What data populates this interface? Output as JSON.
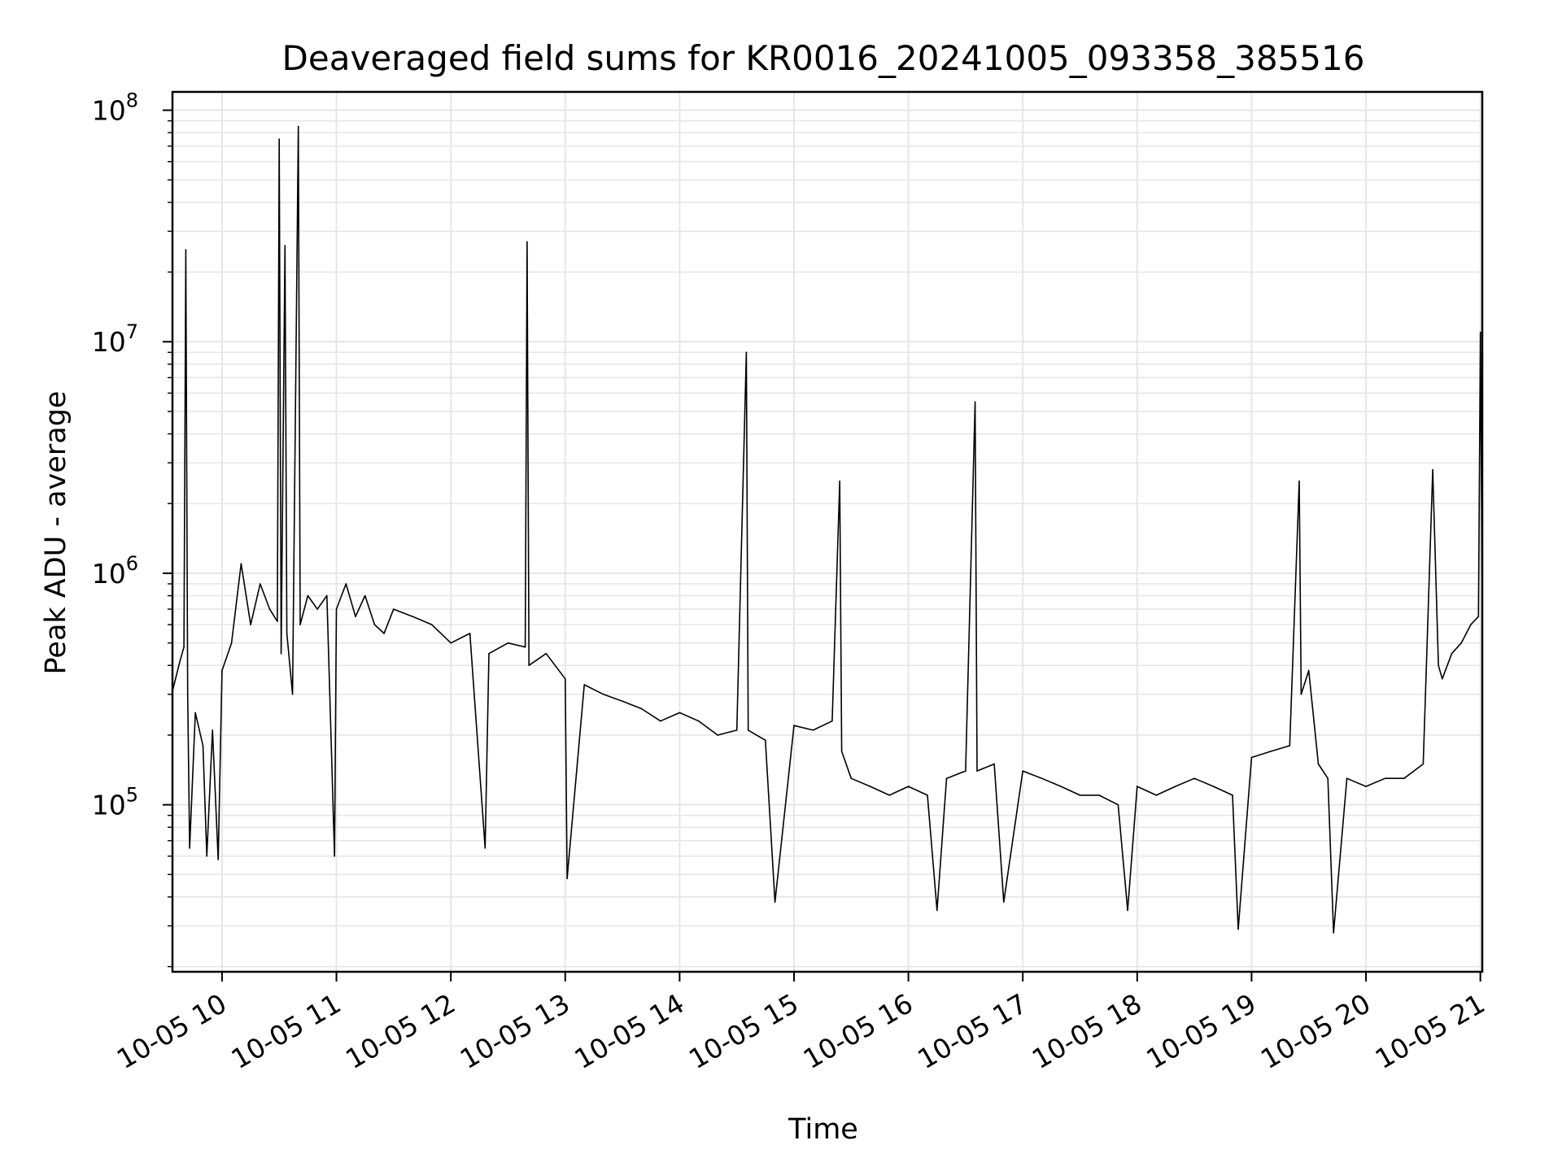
{
  "chart_data": {
    "type": "line",
    "title": "Deaveraged field sums for KR0016_20241005_093358_385516",
    "xlabel": "Time",
    "ylabel": "Peak ADU - average",
    "yscale": "log",
    "ylim": [
      19000,
      120000000
    ],
    "xlim": [
      "2024-10-05 09:34",
      "2024-10-05 21:01"
    ],
    "grid": true,
    "line_color": "#000000",
    "grid_color": "#e6e6e6",
    "x_ticks": [
      {
        "value": "2024-10-05 10:00",
        "label": "10-05 10"
      },
      {
        "value": "2024-10-05 11:00",
        "label": "10-05 11"
      },
      {
        "value": "2024-10-05 12:00",
        "label": "10-05 12"
      },
      {
        "value": "2024-10-05 13:00",
        "label": "10-05 13"
      },
      {
        "value": "2024-10-05 14:00",
        "label": "10-05 14"
      },
      {
        "value": "2024-10-05 15:00",
        "label": "10-05 15"
      },
      {
        "value": "2024-10-05 16:00",
        "label": "10-05 16"
      },
      {
        "value": "2024-10-05 17:00",
        "label": "10-05 17"
      },
      {
        "value": "2024-10-05 18:00",
        "label": "10-05 18"
      },
      {
        "value": "2024-10-05 19:00",
        "label": "10-05 19"
      },
      {
        "value": "2024-10-05 20:00",
        "label": "10-05 20"
      },
      {
        "value": "2024-10-05 21:00",
        "label": "10-05 21"
      }
    ],
    "y_ticks": [
      {
        "value": 100000,
        "base": "10",
        "exp": "5"
      },
      {
        "value": 1000000,
        "base": "10",
        "exp": "6"
      },
      {
        "value": 10000000,
        "base": "10",
        "exp": "7"
      },
      {
        "value": 100000000,
        "base": "10",
        "exp": "8"
      }
    ],
    "series": [
      {
        "color": "#000000",
        "points": [
          [
            "2024-10-05 09:34",
            310000
          ],
          [
            "2024-10-05 09:38",
            420000
          ],
          [
            "2024-10-05 09:40",
            480000
          ],
          [
            "2024-10-05 09:41",
            25000000
          ],
          [
            "2024-10-05 09:42",
            300000
          ],
          [
            "2024-10-05 09:43",
            65000
          ],
          [
            "2024-10-05 09:46",
            250000
          ],
          [
            "2024-10-05 09:50",
            180000
          ],
          [
            "2024-10-05 09:52",
            60000
          ],
          [
            "2024-10-05 09:55",
            210000
          ],
          [
            "2024-10-05 09:58",
            58000
          ],
          [
            "2024-10-05 10:00",
            380000
          ],
          [
            "2024-10-05 10:05",
            500000
          ],
          [
            "2024-10-05 10:10",
            1100000
          ],
          [
            "2024-10-05 10:15",
            600000
          ],
          [
            "2024-10-05 10:20",
            900000
          ],
          [
            "2024-10-05 10:25",
            700000
          ],
          [
            "2024-10-05 10:29",
            620000
          ],
          [
            "2024-10-05 10:30",
            75000000
          ],
          [
            "2024-10-05 10:31",
            450000
          ],
          [
            "2024-10-05 10:33",
            26000000
          ],
          [
            "2024-10-05 10:34",
            550000
          ],
          [
            "2024-10-05 10:37",
            300000
          ],
          [
            "2024-10-05 10:40",
            85000000
          ],
          [
            "2024-10-05 10:41",
            600000
          ],
          [
            "2024-10-05 10:45",
            800000
          ],
          [
            "2024-10-05 10:50",
            700000
          ],
          [
            "2024-10-05 10:55",
            800000
          ],
          [
            "2024-10-05 10:59",
            60000
          ],
          [
            "2024-10-05 11:00",
            700000
          ],
          [
            "2024-10-05 11:05",
            900000
          ],
          [
            "2024-10-05 11:10",
            650000
          ],
          [
            "2024-10-05 11:15",
            800000
          ],
          [
            "2024-10-05 11:20",
            600000
          ],
          [
            "2024-10-05 11:25",
            550000
          ],
          [
            "2024-10-05 11:30",
            700000
          ],
          [
            "2024-10-05 11:40",
            650000
          ],
          [
            "2024-10-05 11:50",
            600000
          ],
          [
            "2024-10-05 12:00",
            500000
          ],
          [
            "2024-10-05 12:10",
            550000
          ],
          [
            "2024-10-05 12:18",
            65000
          ],
          [
            "2024-10-05 12:20",
            450000
          ],
          [
            "2024-10-05 12:30",
            500000
          ],
          [
            "2024-10-05 12:39",
            480000
          ],
          [
            "2024-10-05 12:40",
            27000000
          ],
          [
            "2024-10-05 12:41",
            400000
          ],
          [
            "2024-10-05 12:50",
            450000
          ],
          [
            "2024-10-05 13:00",
            350000
          ],
          [
            "2024-10-05 13:01",
            48000
          ],
          [
            "2024-10-05 13:10",
            330000
          ],
          [
            "2024-10-05 13:20",
            300000
          ],
          [
            "2024-10-05 13:30",
            280000
          ],
          [
            "2024-10-05 13:40",
            260000
          ],
          [
            "2024-10-05 13:50",
            230000
          ],
          [
            "2024-10-05 14:00",
            250000
          ],
          [
            "2024-10-05 14:10",
            230000
          ],
          [
            "2024-10-05 14:20",
            200000
          ],
          [
            "2024-10-05 14:30",
            210000
          ],
          [
            "2024-10-05 14:35",
            9000000
          ],
          [
            "2024-10-05 14:36",
            210000
          ],
          [
            "2024-10-05 14:45",
            190000
          ],
          [
            "2024-10-05 14:50",
            38000
          ],
          [
            "2024-10-05 15:00",
            220000
          ],
          [
            "2024-10-05 15:10",
            210000
          ],
          [
            "2024-10-05 15:20",
            230000
          ],
          [
            "2024-10-05 15:24",
            2500000
          ],
          [
            "2024-10-05 15:25",
            170000
          ],
          [
            "2024-10-05 15:30",
            130000
          ],
          [
            "2024-10-05 15:40",
            120000
          ],
          [
            "2024-10-05 15:50",
            110000
          ],
          [
            "2024-10-05 16:00",
            120000
          ],
          [
            "2024-10-05 16:10",
            110000
          ],
          [
            "2024-10-05 16:15",
            35000
          ],
          [
            "2024-10-05 16:20",
            130000
          ],
          [
            "2024-10-05 16:30",
            140000
          ],
          [
            "2024-10-05 16:35",
            5500000
          ],
          [
            "2024-10-05 16:36",
            140000
          ],
          [
            "2024-10-05 16:45",
            150000
          ],
          [
            "2024-10-05 16:50",
            38000
          ],
          [
            "2024-10-05 17:00",
            140000
          ],
          [
            "2024-10-05 17:10",
            130000
          ],
          [
            "2024-10-05 17:20",
            120000
          ],
          [
            "2024-10-05 17:30",
            110000
          ],
          [
            "2024-10-05 17:40",
            110000
          ],
          [
            "2024-10-05 17:50",
            100000
          ],
          [
            "2024-10-05 17:55",
            35000
          ],
          [
            "2024-10-05 18:00",
            120000
          ],
          [
            "2024-10-05 18:10",
            110000
          ],
          [
            "2024-10-05 18:20",
            120000
          ],
          [
            "2024-10-05 18:30",
            130000
          ],
          [
            "2024-10-05 18:40",
            120000
          ],
          [
            "2024-10-05 18:50",
            110000
          ],
          [
            "2024-10-05 18:53",
            29000
          ],
          [
            "2024-10-05 19:00",
            160000
          ],
          [
            "2024-10-05 19:10",
            170000
          ],
          [
            "2024-10-05 19:20",
            180000
          ],
          [
            "2024-10-05 19:25",
            2500000
          ],
          [
            "2024-10-05 19:26",
            300000
          ],
          [
            "2024-10-05 19:30",
            380000
          ],
          [
            "2024-10-05 19:35",
            150000
          ],
          [
            "2024-10-05 19:40",
            130000
          ],
          [
            "2024-10-05 19:43",
            28000
          ],
          [
            "2024-10-05 19:50",
            130000
          ],
          [
            "2024-10-05 20:00",
            120000
          ],
          [
            "2024-10-05 20:10",
            130000
          ],
          [
            "2024-10-05 20:20",
            130000
          ],
          [
            "2024-10-05 20:30",
            150000
          ],
          [
            "2024-10-05 20:35",
            2800000
          ],
          [
            "2024-10-05 20:38",
            400000
          ],
          [
            "2024-10-05 20:40",
            350000
          ],
          [
            "2024-10-05 20:45",
            450000
          ],
          [
            "2024-10-05 20:50",
            500000
          ],
          [
            "2024-10-05 20:55",
            600000
          ],
          [
            "2024-10-05 20:59",
            650000
          ],
          [
            "2024-10-05 21:00",
            11000000
          ],
          [
            "2024-10-05 21:01",
            700000
          ]
        ]
      }
    ]
  }
}
